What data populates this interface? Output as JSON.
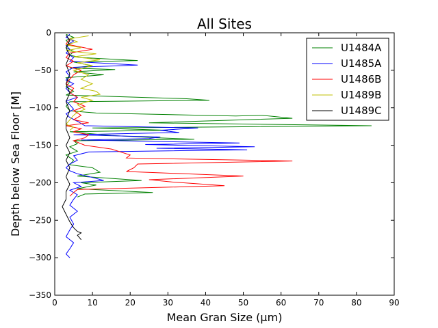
{
  "chart_data": {
    "type": "line",
    "title": "All Sites",
    "xlabel": "Mean Gran Size (µm)",
    "ylabel": "Depth below Sea Floor [M]",
    "xlim": [
      0,
      90
    ],
    "ylim": [
      -350,
      0
    ],
    "xticks": [
      0,
      10,
      20,
      30,
      40,
      50,
      60,
      70,
      80,
      90
    ],
    "yticks": [
      0,
      -50,
      -100,
      -150,
      -200,
      -250,
      -300,
      -350
    ],
    "grid": false,
    "legend_position": "top-right",
    "series": [
      {
        "name": "U1484A",
        "color": "#008000",
        "points": [
          [
            3,
            -2
          ],
          [
            5,
            -6
          ],
          [
            3,
            -10
          ],
          [
            4,
            -15
          ],
          [
            3,
            -20
          ],
          [
            5,
            -25
          ],
          [
            4,
            -30
          ],
          [
            7,
            -33
          ],
          [
            22,
            -37
          ],
          [
            5,
            -39
          ],
          [
            10,
            -44
          ],
          [
            4,
            -47
          ],
          [
            16,
            -49
          ],
          [
            5,
            -52
          ],
          [
            13,
            -56
          ],
          [
            3,
            -60
          ],
          [
            4,
            -65
          ],
          [
            3,
            -72
          ],
          [
            5,
            -78
          ],
          [
            3,
            -83
          ],
          [
            35,
            -88
          ],
          [
            41,
            -90
          ],
          [
            4,
            -92
          ],
          [
            3,
            -98
          ],
          [
            4,
            -104
          ],
          [
            11,
            -107
          ],
          [
            48,
            -111
          ],
          [
            55,
            -110
          ],
          [
            63,
            -114
          ],
          [
            25,
            -120
          ],
          [
            84,
            -124
          ],
          [
            10,
            -127
          ],
          [
            30,
            -130
          ],
          [
            4,
            -132
          ],
          [
            15,
            -137
          ],
          [
            27,
            -140
          ],
          [
            37,
            -142
          ],
          [
            5,
            -144
          ],
          [
            6,
            -148
          ],
          [
            4,
            -152
          ],
          [
            6,
            -158
          ],
          [
            3,
            -163
          ],
          [
            5,
            -170
          ],
          [
            4,
            -176
          ],
          [
            10,
            -180
          ],
          [
            12,
            -186
          ],
          [
            6,
            -191
          ],
          [
            23,
            -197
          ],
          [
            7,
            -200
          ],
          [
            11,
            -203
          ],
          [
            6,
            -208
          ],
          [
            26,
            -213
          ],
          [
            8,
            -215
          ],
          [
            6,
            -219
          ]
        ]
      },
      {
        "name": "U1485A",
        "color": "#0000ff",
        "points": [
          [
            4,
            -2
          ],
          [
            3,
            -6
          ],
          [
            5,
            -11
          ],
          [
            3,
            -17
          ],
          [
            4,
            -22
          ],
          [
            3,
            -27
          ],
          [
            5,
            -33
          ],
          [
            4,
            -38
          ],
          [
            22,
            -43
          ],
          [
            5,
            -46
          ],
          [
            3,
            -52
          ],
          [
            4,
            -58
          ],
          [
            3,
            -63
          ],
          [
            5,
            -68
          ],
          [
            3,
            -74
          ],
          [
            4,
            -80
          ],
          [
            6,
            -86
          ],
          [
            3,
            -91
          ],
          [
            4,
            -96
          ],
          [
            5,
            -102
          ],
          [
            3,
            -108
          ],
          [
            4,
            -113
          ],
          [
            6,
            -118
          ],
          [
            8,
            -124
          ],
          [
            38,
            -127
          ],
          [
            28,
            -130
          ],
          [
            33,
            -133
          ],
          [
            5,
            -136
          ],
          [
            28,
            -139
          ],
          [
            25,
            -141
          ],
          [
            7,
            -143
          ],
          [
            49,
            -147
          ],
          [
            24,
            -149
          ],
          [
            53,
            -152
          ],
          [
            27,
            -154
          ],
          [
            51,
            -156
          ],
          [
            9,
            -159
          ],
          [
            5,
            -164
          ],
          [
            6,
            -170
          ],
          [
            4,
            -175
          ],
          [
            3,
            -180
          ],
          [
            4,
            -184
          ],
          [
            6,
            -188
          ],
          [
            10,
            -193
          ],
          [
            13,
            -197
          ],
          [
            5,
            -200
          ],
          [
            7,
            -205
          ],
          [
            4,
            -210
          ],
          [
            6,
            -216
          ],
          [
            5,
            -222
          ],
          [
            4,
            -230
          ],
          [
            6,
            -238
          ],
          [
            4,
            -246
          ],
          [
            5,
            -255
          ],
          [
            4,
            -263
          ],
          [
            3,
            -272
          ],
          [
            5,
            -280
          ],
          [
            4,
            -288
          ],
          [
            3,
            -295
          ],
          [
            4,
            -300
          ]
        ]
      },
      {
        "name": "U1486B",
        "color": "#ff0000",
        "points": [
          [
            4,
            -8
          ],
          [
            3,
            -15
          ],
          [
            10,
            -22
          ],
          [
            4,
            -27
          ],
          [
            3,
            -33
          ],
          [
            5,
            -38
          ],
          [
            3,
            -44
          ],
          [
            7,
            -50
          ],
          [
            5,
            -56
          ],
          [
            4,
            -62
          ],
          [
            3,
            -68
          ],
          [
            5,
            -74
          ],
          [
            4,
            -80
          ],
          [
            6,
            -86
          ],
          [
            5,
            -92
          ],
          [
            8,
            -98
          ],
          [
            5,
            -104
          ],
          [
            7,
            -110
          ],
          [
            5,
            -116
          ],
          [
            9,
            -120
          ],
          [
            3,
            -124
          ],
          [
            7,
            -128
          ],
          [
            5,
            -132
          ],
          [
            9,
            -136
          ],
          [
            8,
            -140
          ],
          [
            5,
            -144
          ],
          [
            8,
            -150
          ],
          [
            15,
            -155
          ],
          [
            20,
            -163
          ],
          [
            19,
            -167
          ],
          [
            63,
            -171
          ],
          [
            22,
            -175
          ],
          [
            21,
            -180
          ],
          [
            19,
            -185
          ],
          [
            50,
            -191
          ],
          [
            25,
            -196
          ],
          [
            31,
            -199
          ],
          [
            45,
            -204
          ],
          [
            6,
            -209
          ],
          [
            5,
            -213
          ],
          [
            4,
            -218
          ]
        ]
      },
      {
        "name": "U1489B",
        "color": "#bfbf00",
        "points": [
          [
            9,
            -4
          ],
          [
            4,
            -8
          ],
          [
            6,
            -12
          ],
          [
            3,
            -16
          ],
          [
            7,
            -20
          ],
          [
            3,
            -24
          ],
          [
            11,
            -28
          ],
          [
            5,
            -32
          ],
          [
            12,
            -36
          ],
          [
            6,
            -40
          ],
          [
            10,
            -44
          ],
          [
            5,
            -50
          ],
          [
            9,
            -56
          ],
          [
            7,
            -62
          ],
          [
            10,
            -68
          ],
          [
            7,
            -74
          ],
          [
            11,
            -78
          ],
          [
            12,
            -82
          ],
          [
            7,
            -86
          ],
          [
            10,
            -90
          ],
          [
            6,
            -96
          ],
          [
            8,
            -102
          ],
          [
            6,
            -106
          ],
          [
            5,
            -110
          ],
          [
            4,
            -116
          ],
          [
            3,
            -122
          ],
          [
            5,
            -126
          ],
          [
            4,
            -130
          ]
        ]
      },
      {
        "name": "U1489C",
        "color": "#000000",
        "points": [
          [
            3,
            -3
          ],
          [
            4,
            -10
          ],
          [
            3,
            -20
          ],
          [
            4,
            -30
          ],
          [
            3,
            -42
          ],
          [
            4,
            -55
          ],
          [
            3,
            -68
          ],
          [
            4,
            -80
          ],
          [
            3,
            -92
          ],
          [
            4,
            -104
          ],
          [
            3,
            -116
          ],
          [
            3,
            -128
          ],
          [
            4,
            -140
          ],
          [
            3,
            -150
          ],
          [
            4,
            -160
          ],
          [
            3,
            -170
          ],
          [
            4,
            -180
          ],
          [
            3,
            -192
          ],
          [
            4,
            -202
          ],
          [
            3,
            -212
          ],
          [
            3,
            -222
          ],
          [
            2,
            -232
          ],
          [
            3,
            -242
          ],
          [
            4,
            -252
          ],
          [
            5,
            -260
          ],
          [
            6,
            -265
          ],
          [
            7,
            -267
          ],
          [
            6,
            -270
          ],
          [
            7,
            -276
          ]
        ]
      }
    ]
  }
}
